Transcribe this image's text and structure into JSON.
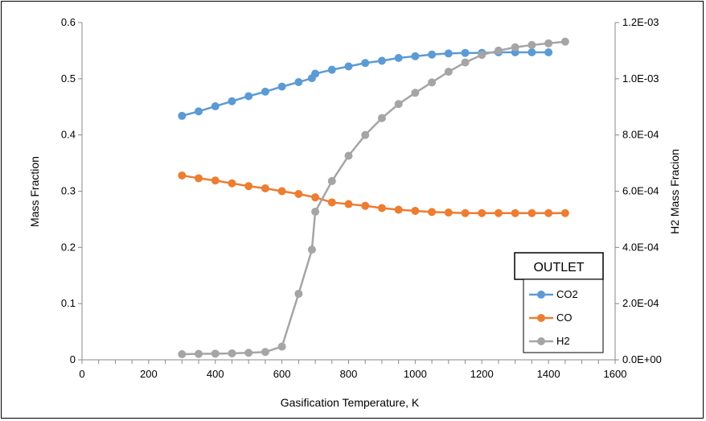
{
  "chart_data": {
    "type": "line",
    "xlabel": "Gasification Temperature, K",
    "ylabel": "Mass Fraction",
    "y2label": "H2 Mass Fracion",
    "xlim": [
      0,
      1600
    ],
    "ylim": [
      0,
      0.6
    ],
    "y2lim": [
      0,
      0.0012
    ],
    "x_ticks": [
      "0",
      "200",
      "400",
      "600",
      "800",
      "1000",
      "1200",
      "1400",
      "1600"
    ],
    "y_ticks": [
      "0",
      "0.1",
      "0.2",
      "0.3",
      "0.4",
      "0.5",
      "0.6"
    ],
    "y2_ticks": [
      "0.0E+00",
      "2.0E-04",
      "4.0E-04",
      "6.0E-04",
      "8.0E-04",
      "1.0E-03",
      "1.2E-03"
    ],
    "legend_title": "OUTLET",
    "legend_position": "bottom-right",
    "grid": false,
    "series": [
      {
        "name": "CO2",
        "axis": "left",
        "color": "#5B9BD5",
        "x": [
          300,
          350,
          400,
          450,
          500,
          550,
          600,
          650,
          690,
          700,
          750,
          800,
          850,
          900,
          950,
          1000,
          1050,
          1100,
          1150,
          1200,
          1250,
          1300,
          1350,
          1400
        ],
        "values": [
          0.434,
          0.442,
          0.451,
          0.46,
          0.469,
          0.477,
          0.486,
          0.494,
          0.501,
          0.509,
          0.516,
          0.522,
          0.528,
          0.532,
          0.537,
          0.54,
          0.543,
          0.545,
          0.546,
          0.546,
          0.547,
          0.547,
          0.547,
          0.547
        ]
      },
      {
        "name": "CO",
        "axis": "left",
        "color": "#ED7D31",
        "x": [
          300,
          350,
          400,
          450,
          500,
          550,
          600,
          650,
          700,
          750,
          800,
          850,
          900,
          950,
          1000,
          1050,
          1100,
          1150,
          1200,
          1250,
          1300,
          1350,
          1400,
          1450
        ],
        "values": [
          0.328,
          0.323,
          0.319,
          0.314,
          0.309,
          0.305,
          0.3,
          0.295,
          0.289,
          0.28,
          0.277,
          0.274,
          0.27,
          0.267,
          0.265,
          0.263,
          0.262,
          0.261,
          0.261,
          0.261,
          0.261,
          0.261,
          0.261,
          0.261
        ]
      },
      {
        "name": "H2",
        "axis": "right",
        "color": "#A5A5A5",
        "x": [
          300,
          350,
          400,
          450,
          500,
          550,
          600,
          650,
          690,
          700,
          750,
          800,
          850,
          900,
          950,
          1000,
          1050,
          1100,
          1150,
          1200,
          1250,
          1300,
          1350,
          1400,
          1450
        ],
        "values": [
          2e-05,
          2.1e-05,
          2.2e-05,
          2.3e-05,
          2.5e-05,
          2.8e-05,
          4.7e-05,
          0.000235,
          0.000392,
          0.000527,
          0.000636,
          0.000726,
          0.0008,
          0.00086,
          0.00091,
          0.00095,
          0.000987,
          0.001025,
          0.001058,
          0.001085,
          0.0011,
          0.001112,
          0.00112,
          0.001126,
          0.001132
        ]
      }
    ]
  }
}
